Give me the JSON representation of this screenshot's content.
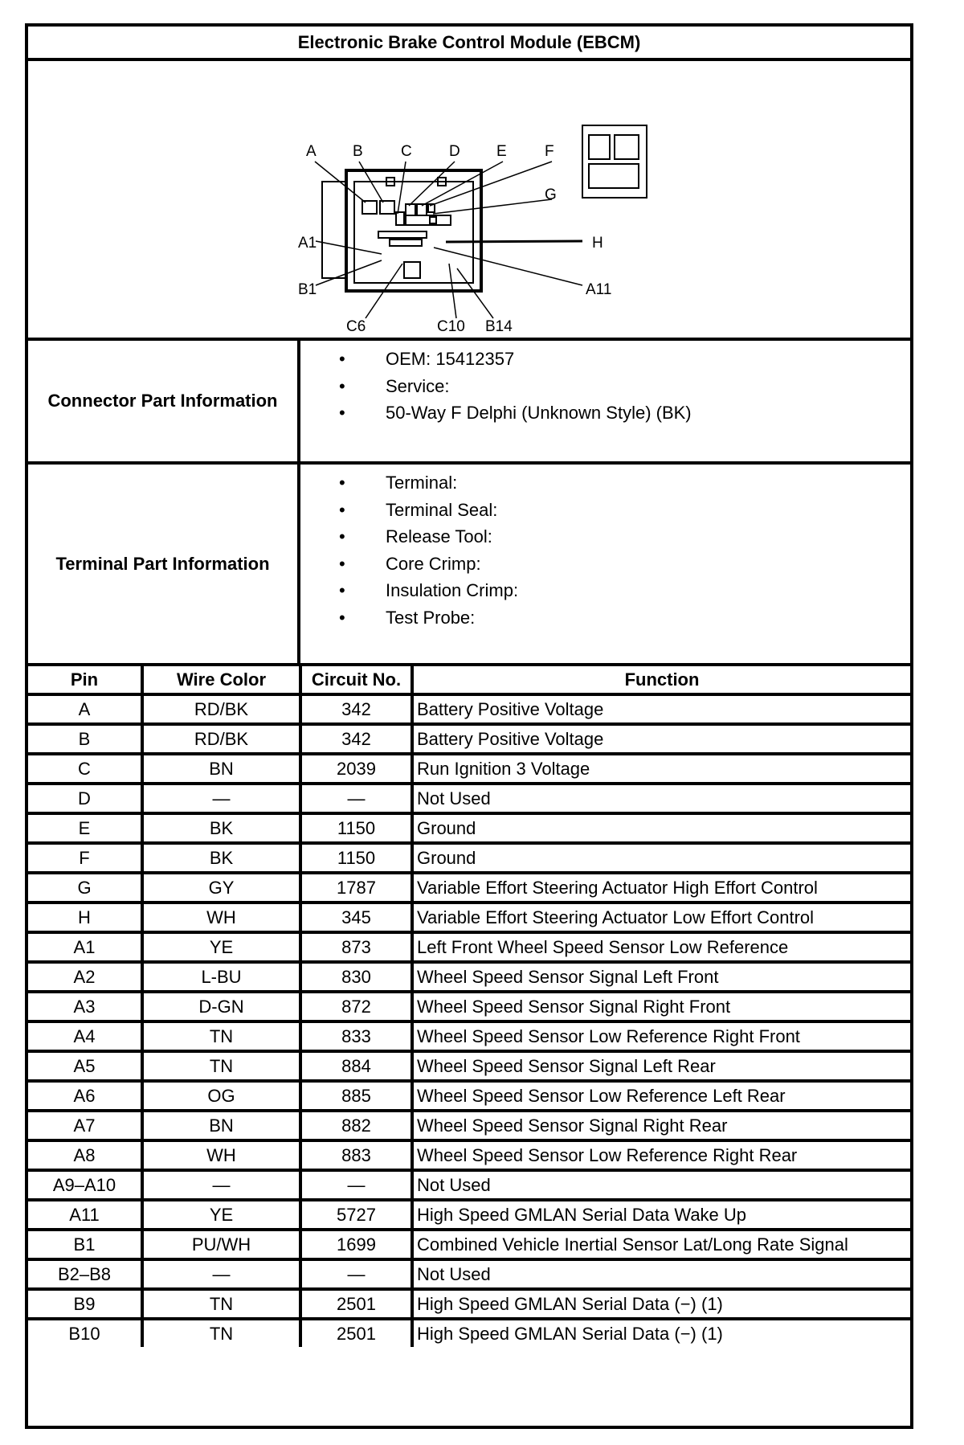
{
  "title": "Electronic Brake Control Module (EBCM)",
  "diagram": {
    "labels_top": [
      "A",
      "B",
      "C",
      "D",
      "E",
      "F"
    ],
    "labels_right": [
      "G",
      "H",
      "A11"
    ],
    "labels_left": [
      "A1",
      "B1"
    ],
    "labels_bottom": [
      "C6",
      "C10",
      "B14"
    ]
  },
  "connector": {
    "label": "Connector Part Information",
    "items": [
      "OEM: 15412357",
      "Service:",
      "50-Way F Delphi (Unknown Style) (BK)"
    ]
  },
  "terminal": {
    "label": "Terminal Part Information",
    "items": [
      "Terminal:",
      "Terminal Seal:",
      "Release Tool:",
      "Core Crimp:",
      "Insulation Crimp:",
      "Test Probe:"
    ]
  },
  "table": {
    "headers": [
      "Pin",
      "Wire Color",
      "Circuit No.",
      "Function"
    ],
    "rows": [
      [
        "A",
        "RD/BK",
        "342",
        "Battery Positive Voltage"
      ],
      [
        "B",
        "RD/BK",
        "342",
        "Battery Positive Voltage"
      ],
      [
        "C",
        "BN",
        "2039",
        "Run Ignition 3 Voltage"
      ],
      [
        "D",
        "—",
        "—",
        "Not Used"
      ],
      [
        "E",
        "BK",
        "1150",
        "Ground"
      ],
      [
        "F",
        "BK",
        "1150",
        "Ground"
      ],
      [
        "G",
        "GY",
        "1787",
        "Variable Effort Steering Actuator High Effort Control"
      ],
      [
        "H",
        "WH",
        "345",
        "Variable Effort Steering Actuator Low Effort Control"
      ],
      [
        "A1",
        "YE",
        "873",
        "Left Front Wheel Speed Sensor Low Reference"
      ],
      [
        "A2",
        "L-BU",
        "830",
        "Wheel Speed Sensor Signal Left Front"
      ],
      [
        "A3",
        "D-GN",
        "872",
        "Wheel Speed Sensor Signal Right Front"
      ],
      [
        "A4",
        "TN",
        "833",
        "Wheel Speed Sensor Low Reference Right Front"
      ],
      [
        "A5",
        "TN",
        "884",
        "Wheel Speed Sensor Signal Left Rear"
      ],
      [
        "A6",
        "OG",
        "885",
        "Wheel Speed Sensor Low Reference Left Rear"
      ],
      [
        "A7",
        "BN",
        "882",
        "Wheel Speed Sensor Signal Right Rear"
      ],
      [
        "A8",
        "WH",
        "883",
        "Wheel Speed Sensor Low Reference Right Rear"
      ],
      [
        "A9–A10",
        "—",
        "—",
        "Not Used"
      ],
      [
        "A11",
        "YE",
        "5727",
        "High Speed GMLAN Serial Data Wake Up"
      ],
      [
        "B1",
        "PU/WH",
        "1699",
        "Combined Vehicle Inertial Sensor Lat/Long Rate Signal"
      ],
      [
        "B2–B8",
        "—",
        "—",
        "Not Used"
      ],
      [
        "B9",
        "TN",
        "2501",
        "High Speed GMLAN Serial Data (−) (1)"
      ],
      [
        "B10",
        "TN",
        "2501",
        "High Speed GMLAN Serial Data (−) (1)"
      ]
    ]
  }
}
